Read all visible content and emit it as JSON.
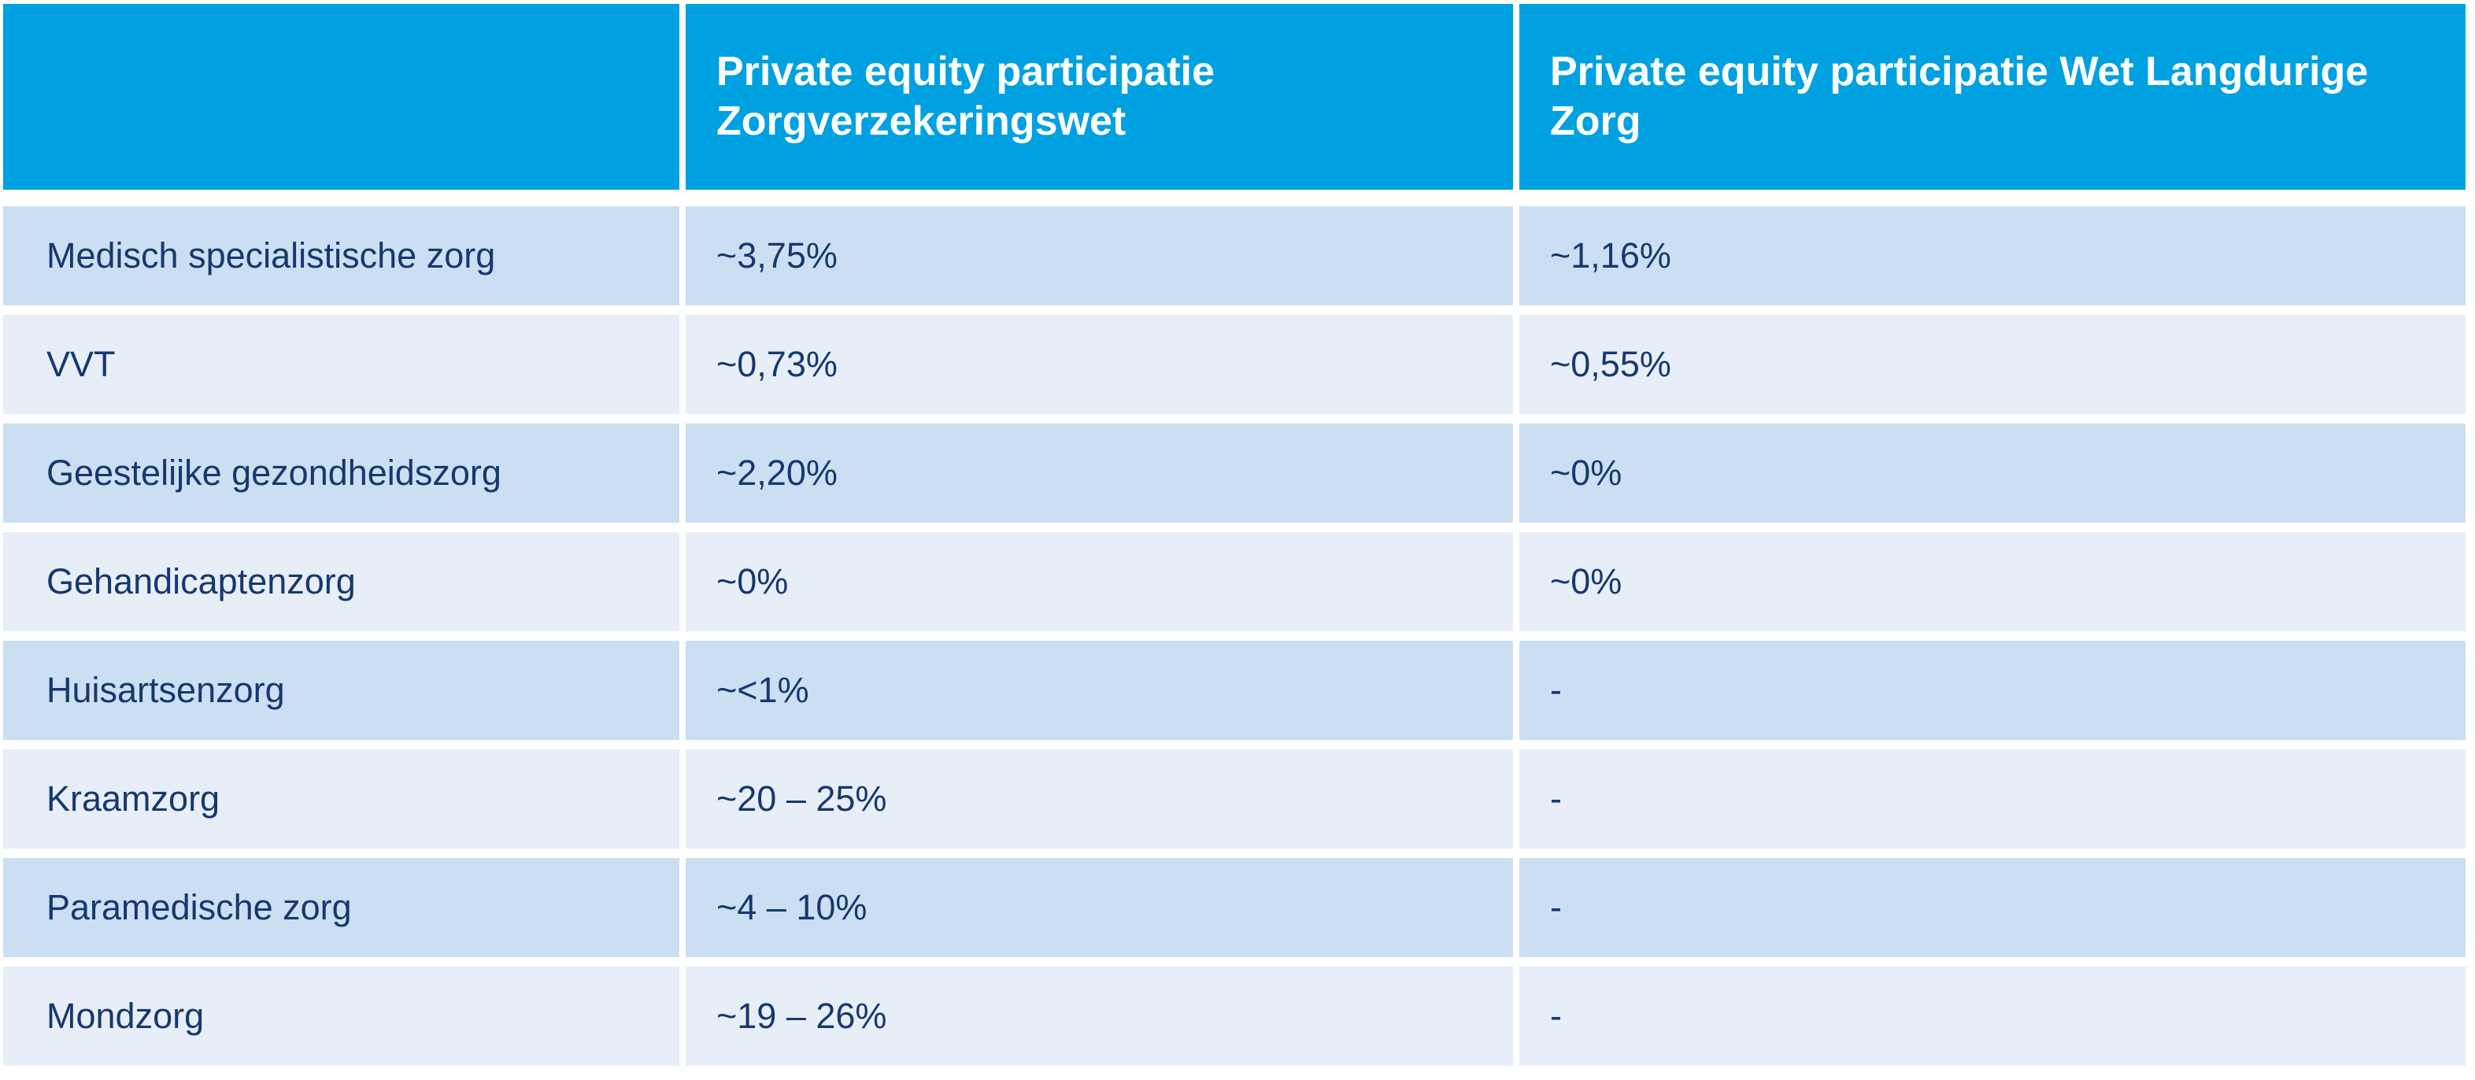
{
  "table": {
    "header": {
      "col1": "",
      "col2": "Private equity participatie\nZorgverzekeringswet",
      "col3": "Private equity participatie Wet Langdurige Zorg"
    },
    "rows": [
      {
        "sector": "Medisch specialistische zorg",
        "zvw": "~3,75%",
        "wlz": "~1,16%"
      },
      {
        "sector": "VVT",
        "zvw": "~0,73%",
        "wlz": "~0,55%"
      },
      {
        "sector": "Geestelijke gezondheidszorg",
        "zvw": "~2,20%",
        "wlz": "~0%"
      },
      {
        "sector": "Gehandicaptenzorg",
        "zvw": "~0%",
        "wlz": "~0%"
      },
      {
        "sector": "Huisartsenzorg",
        "zvw": "~<1%",
        "wlz": "-"
      },
      {
        "sector": "Kraamzorg",
        "zvw": "~20 – 25%",
        "wlz": "-"
      },
      {
        "sector": "Paramedische zorg",
        "zvw": "~4 – 10%",
        "wlz": "-"
      },
      {
        "sector": "Mondzorg",
        "zvw": "~19 – 26%",
        "wlz": "-"
      }
    ]
  },
  "colors": {
    "header_bg": "#00A1E0",
    "header_text": "#FFFFFF",
    "row_dark_bg": "#CCDFF2",
    "row_light_bg": "#E7EEF8",
    "body_text": "#16386E",
    "gutter": "#FFFFFF"
  },
  "chart_data": {
    "type": "table",
    "columns": [
      "",
      "Private equity participatie Zorgverzekeringswet",
      "Private equity participatie Wet Langdurige Zorg"
    ],
    "rows": [
      [
        "Medisch specialistische zorg",
        "~3,75%",
        "~1,16%"
      ],
      [
        "VVT",
        "~0,73%",
        "~0,55%"
      ],
      [
        "Geestelijke gezondheidszorg",
        "~2,20%",
        "~0%"
      ],
      [
        "Gehandicaptenzorg",
        "~0%",
        "~0%"
      ],
      [
        "Huisartsenzorg",
        "~<1%",
        "-"
      ],
      [
        "Kraamzorg",
        "~20 – 25%",
        "-"
      ],
      [
        "Paramedische zorg",
        "~4 – 10%",
        "-"
      ],
      [
        "Mondzorg",
        "~19 – 26%",
        "-"
      ]
    ],
    "title": "",
    "legend": "none",
    "grid": "white gutters between cells, alternating row shading"
  }
}
